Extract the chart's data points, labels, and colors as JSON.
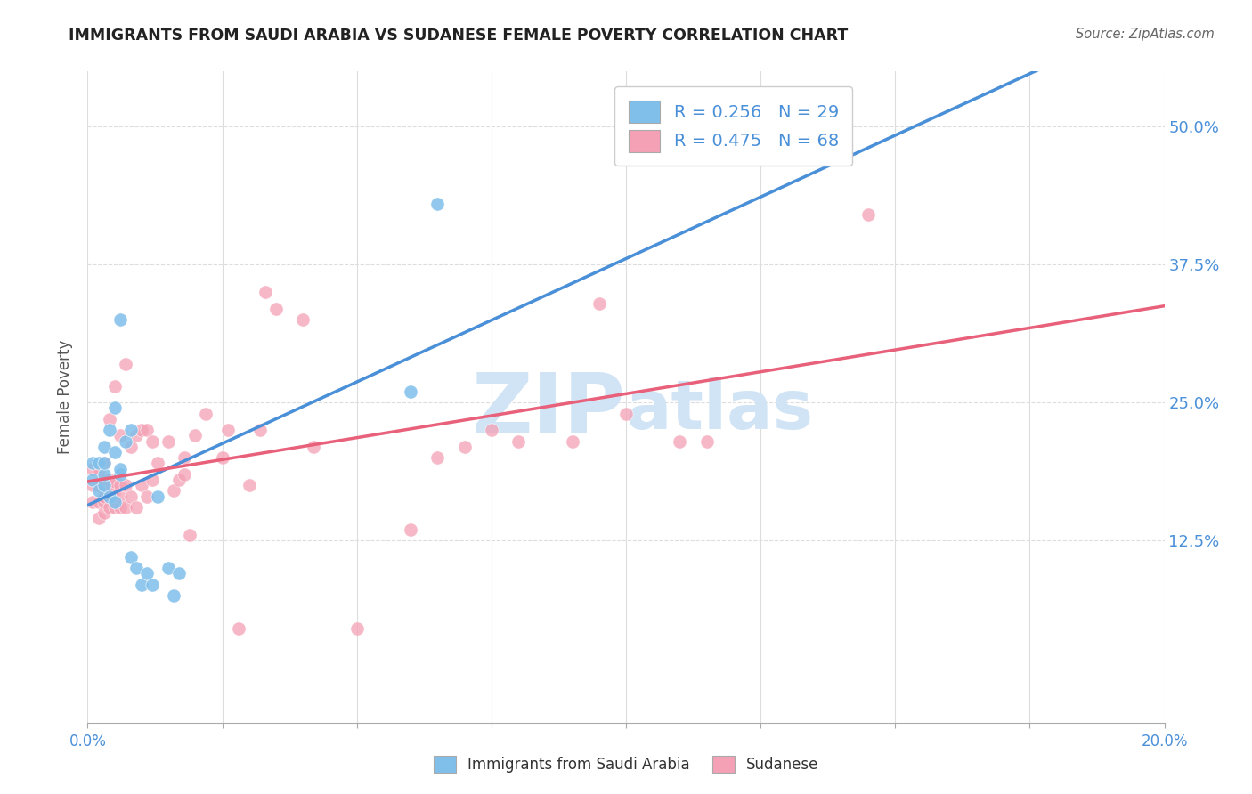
{
  "title": "IMMIGRANTS FROM SAUDI ARABIA VS SUDANESE FEMALE POVERTY CORRELATION CHART",
  "source": "Source: ZipAtlas.com",
  "ylabel": "Female Poverty",
  "ytick_labels": [
    "12.5%",
    "25.0%",
    "37.5%",
    "50.0%"
  ],
  "ytick_values": [
    0.125,
    0.25,
    0.375,
    0.5
  ],
  "xlim": [
    0.0,
    0.2
  ],
  "ylim": [
    -0.04,
    0.55
  ],
  "color_saudi": "#7fbfea",
  "color_sudanese": "#f4a0b5",
  "trendline_saudi_color": "#4a90d9",
  "trendline_sudanese_color": "#e8607a",
  "trendline_gray_color": "#bbbbbb",
  "watermark_color": "#d0e4f5",
  "saudi_x": [
    0.001,
    0.001,
    0.002,
    0.002,
    0.003,
    0.003,
    0.003,
    0.003,
    0.004,
    0.004,
    0.005,
    0.005,
    0.005,
    0.006,
    0.006,
    0.006,
    0.007,
    0.008,
    0.008,
    0.009,
    0.01,
    0.011,
    0.012,
    0.013,
    0.015,
    0.016,
    0.017,
    0.06,
    0.065
  ],
  "saudi_y": [
    0.18,
    0.195,
    0.17,
    0.195,
    0.175,
    0.185,
    0.195,
    0.21,
    0.165,
    0.225,
    0.16,
    0.205,
    0.245,
    0.185,
    0.19,
    0.325,
    0.215,
    0.225,
    0.11,
    0.1,
    0.085,
    0.095,
    0.085,
    0.165,
    0.1,
    0.075,
    0.095,
    0.26,
    0.43
  ],
  "sudanese_x": [
    0.001,
    0.001,
    0.001,
    0.002,
    0.002,
    0.002,
    0.002,
    0.003,
    0.003,
    0.003,
    0.003,
    0.003,
    0.003,
    0.004,
    0.004,
    0.004,
    0.004,
    0.005,
    0.005,
    0.005,
    0.005,
    0.006,
    0.006,
    0.006,
    0.006,
    0.007,
    0.007,
    0.007,
    0.008,
    0.008,
    0.009,
    0.009,
    0.01,
    0.01,
    0.011,
    0.011,
    0.012,
    0.012,
    0.013,
    0.015,
    0.016,
    0.017,
    0.018,
    0.018,
    0.019,
    0.02,
    0.022,
    0.025,
    0.026,
    0.028,
    0.03,
    0.032,
    0.033,
    0.035,
    0.04,
    0.042,
    0.05,
    0.06,
    0.065,
    0.07,
    0.075,
    0.08,
    0.09,
    0.095,
    0.1,
    0.11,
    0.115,
    0.145
  ],
  "sudanese_y": [
    0.16,
    0.175,
    0.19,
    0.145,
    0.16,
    0.175,
    0.19,
    0.15,
    0.16,
    0.165,
    0.175,
    0.18,
    0.195,
    0.155,
    0.17,
    0.18,
    0.235,
    0.155,
    0.17,
    0.178,
    0.265,
    0.155,
    0.165,
    0.175,
    0.22,
    0.155,
    0.175,
    0.285,
    0.165,
    0.21,
    0.155,
    0.22,
    0.175,
    0.225,
    0.165,
    0.225,
    0.18,
    0.215,
    0.195,
    0.215,
    0.17,
    0.18,
    0.185,
    0.2,
    0.13,
    0.22,
    0.24,
    0.2,
    0.225,
    0.045,
    0.175,
    0.225,
    0.35,
    0.335,
    0.325,
    0.21,
    0.045,
    0.135,
    0.2,
    0.21,
    0.225,
    0.215,
    0.215,
    0.34,
    0.24,
    0.215,
    0.215,
    0.42
  ]
}
